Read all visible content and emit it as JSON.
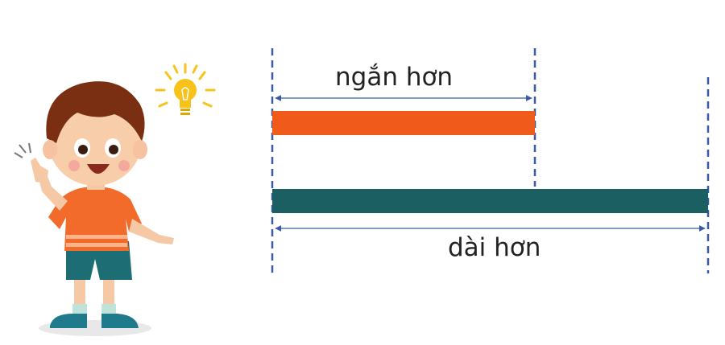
{
  "diagram": {
    "short_label": "ngắn hơn",
    "long_label": "dài hơn",
    "short_length_units": 3,
    "long_length_units": 5
  },
  "colors": {
    "short_bar": "#F05A1A",
    "long_bar": "#1B5F63",
    "guide_line": "#3A5AA8",
    "bulb": "#F9C21A"
  }
}
